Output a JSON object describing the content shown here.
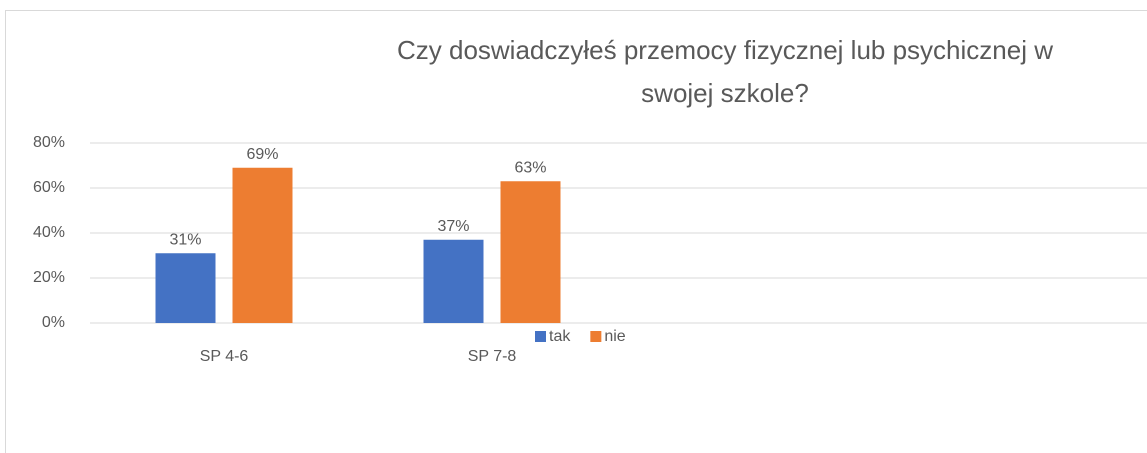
{
  "chart_data": {
    "type": "bar",
    "title_lines": [
      "Czy doswiadczyłeś przemocy fizycznej lub psychicznej w",
      "swojej szkole?"
    ],
    "categories": [
      "SP 4-6",
      "SP 7-8"
    ],
    "series": [
      {
        "name": "tak",
        "color": "#4472c4",
        "values": [
          31,
          37
        ],
        "value_labels": [
          "31%",
          "37%"
        ]
      },
      {
        "name": "nie",
        "color": "#ed7d31",
        "values": [
          69,
          63
        ],
        "value_labels": [
          "69%",
          "63%"
        ]
      }
    ],
    "ylim": [
      0,
      80
    ],
    "yticks": [
      {
        "value": 0,
        "label": "0%"
      },
      {
        "value": 20,
        "label": "20%"
      },
      {
        "value": 40,
        "label": "40%"
      },
      {
        "value": 60,
        "label": "60%"
      },
      {
        "value": 80,
        "label": "80%"
      }
    ],
    "grid": true,
    "legend": "bottom"
  }
}
